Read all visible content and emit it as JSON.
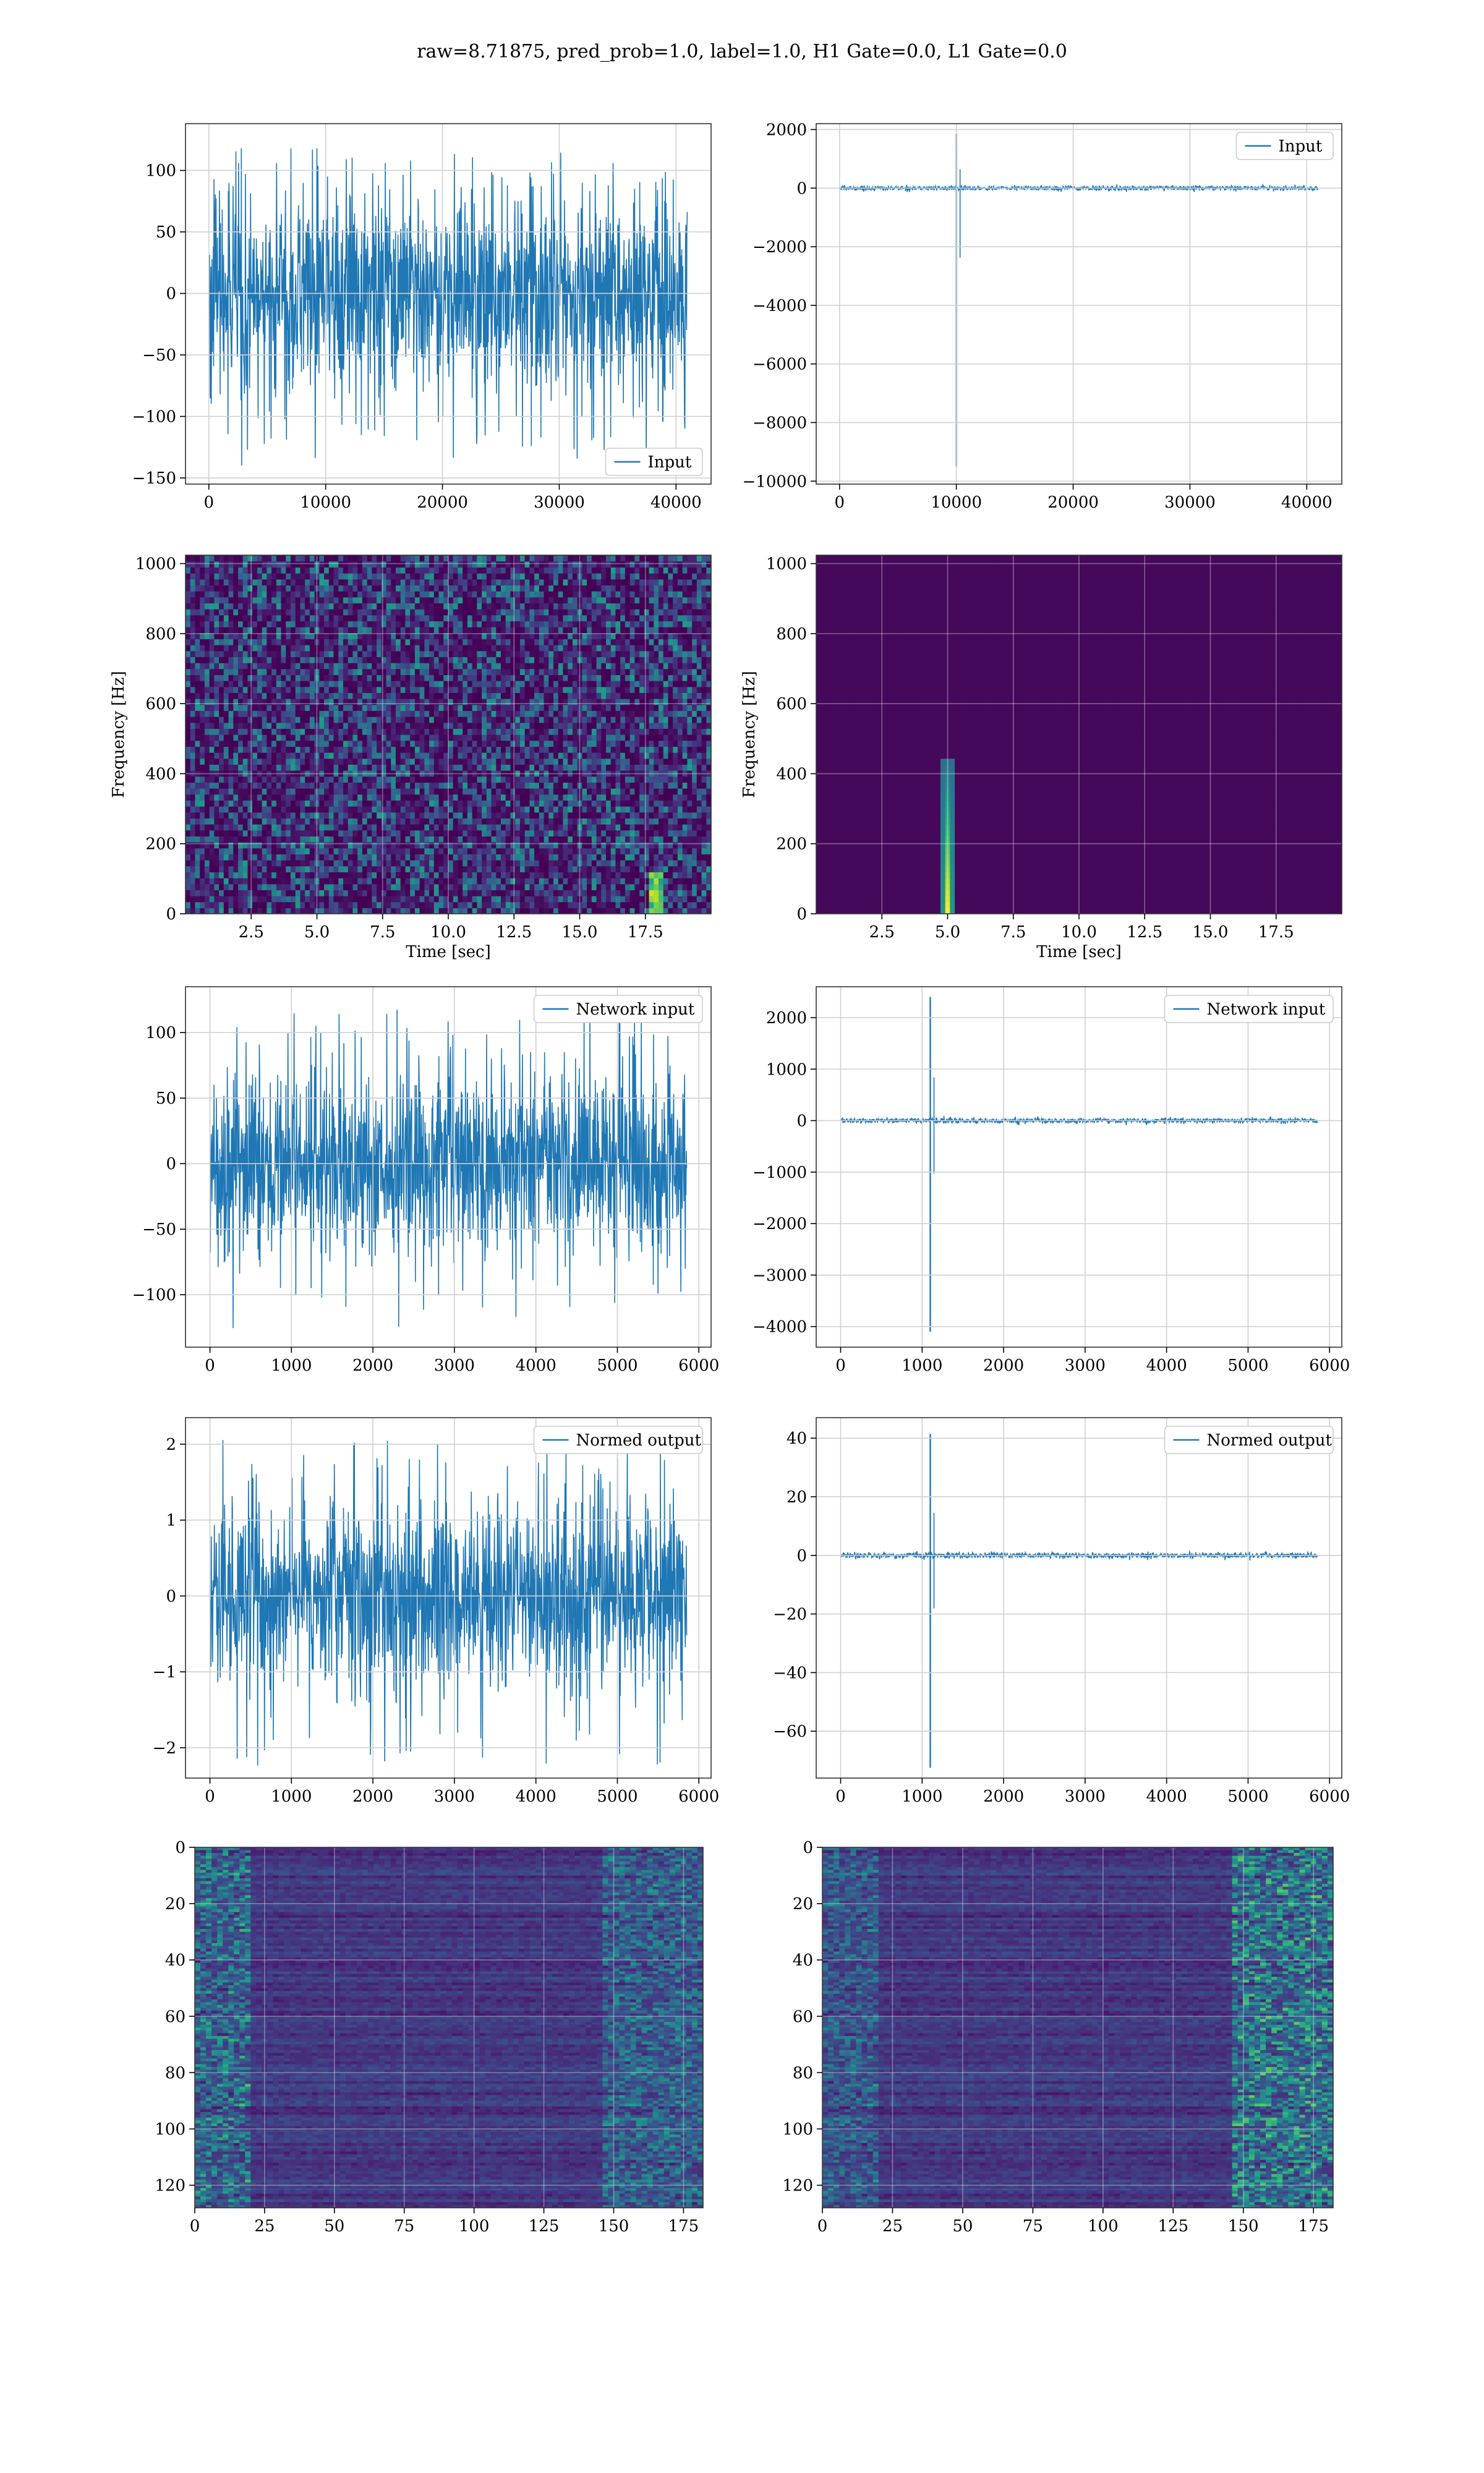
{
  "figure": {
    "title": "raw=8.71875, pred_prob=1.0, label=1.0, H1 Gate=0.0, L1 Gate=0.0"
  },
  "colors": {
    "line": "#1f77b4",
    "grid": "#d0d0d0",
    "viridis": [
      "#440154",
      "#482878",
      "#3e4989",
      "#31688e",
      "#26828e",
      "#1f9e89",
      "#35b779",
      "#6ece58",
      "#b5de2b",
      "#fde725"
    ]
  },
  "chart_data": [
    {
      "id": "input-h1",
      "type": "line",
      "title": "",
      "xlabel": "",
      "ylabel": "",
      "xlim": [
        -2000,
        43000
      ],
      "ylim": [
        -155,
        138
      ],
      "xticks": [
        0,
        10000,
        20000,
        30000,
        40000
      ],
      "yticks": [
        -150,
        -100,
        -50,
        0,
        50,
        100
      ],
      "legend": "Input",
      "legend_position": "bottom-right",
      "series": [
        {
          "name": "Input",
          "length": 40960,
          "range": [
            -140,
            118
          ],
          "typical_amplitude": 40
        }
      ]
    },
    {
      "id": "input-l1",
      "type": "line",
      "title": "",
      "xlabel": "",
      "ylabel": "",
      "xlim": [
        -2000,
        43000
      ],
      "ylim": [
        -10100,
        2200
      ],
      "xticks": [
        0,
        10000,
        20000,
        30000,
        40000
      ],
      "yticks": [
        -10000,
        -8000,
        -6000,
        -4000,
        -2000,
        0,
        2000
      ],
      "legend": "Input",
      "legend_position": "top-right",
      "series": [
        {
          "name": "Input",
          "length": 40960,
          "spike_x": 10000,
          "spike_max": 1850,
          "spike_min": -9500,
          "typical_amplitude": 40
        }
      ]
    },
    {
      "id": "spectrogram-h1",
      "type": "heatmap",
      "title": "",
      "xlabel": "Time [sec]",
      "ylabel": "Frequency [Hz]",
      "xlim": [
        0,
        20
      ],
      "ylim": [
        0,
        1024
      ],
      "xticks": [
        2.5,
        5.0,
        7.5,
        10.0,
        12.5,
        15.0,
        17.5
      ],
      "xtick_labels": [
        "2.5",
        "5.0",
        "7.5",
        "10.0",
        "12.5",
        "15.0",
        "17.5"
      ],
      "yticks": [
        0,
        200,
        400,
        600,
        800,
        1000
      ],
      "colormap": "viridis",
      "content": "broadband noise, faint blip near 18 s / 60 Hz"
    },
    {
      "id": "spectrogram-l1",
      "type": "heatmap",
      "title": "",
      "xlabel": "Time [sec]",
      "ylabel": "Frequency [Hz]",
      "xlim": [
        0,
        20
      ],
      "ylim": [
        0,
        1024
      ],
      "xticks": [
        2.5,
        5.0,
        7.5,
        10.0,
        12.5,
        15.0,
        17.5
      ],
      "xtick_labels": [
        "2.5",
        "5.0",
        "7.5",
        "10.0",
        "12.5",
        "15.0",
        "17.5"
      ],
      "yticks": [
        0,
        200,
        400,
        600,
        800,
        1000
      ],
      "colormap": "viridis",
      "content": "dark background, bright transient at 5.0 s up to ~450 Hz"
    },
    {
      "id": "network-input-h1",
      "type": "line",
      "title": "",
      "xlabel": "",
      "ylabel": "",
      "xlim": [
        -300,
        6150
      ],
      "ylim": [
        -140,
        135
      ],
      "xticks": [
        0,
        1000,
        2000,
        3000,
        4000,
        5000,
        6000
      ],
      "yticks": [
        -100,
        -50,
        0,
        50,
        100
      ],
      "legend": "Network input",
      "legend_position": "top-right",
      "series": [
        {
          "name": "Network input",
          "length": 5850,
          "range": [
            -128,
            122
          ],
          "typical_amplitude": 35
        }
      ]
    },
    {
      "id": "network-input-l1",
      "type": "line",
      "title": "",
      "xlabel": "",
      "ylabel": "",
      "xlim": [
        -300,
        6150
      ],
      "ylim": [
        -4400,
        2600
      ],
      "xticks": [
        0,
        1000,
        2000,
        3000,
        4000,
        5000,
        6000
      ],
      "yticks": [
        -4000,
        -3000,
        -2000,
        -1000,
        0,
        1000,
        2000
      ],
      "legend": "Network input",
      "legend_position": "top-right",
      "series": [
        {
          "name": "Network input",
          "length": 5850,
          "spike_x": 1100,
          "spike_max": 2400,
          "spike_min": -4100,
          "typical_amplitude": 25
        }
      ]
    },
    {
      "id": "normed-output-h1",
      "type": "line",
      "title": "",
      "xlabel": "",
      "ylabel": "",
      "xlim": [
        -300,
        6150
      ],
      "ylim": [
        -2.4,
        2.35
      ],
      "xticks": [
        0,
        1000,
        2000,
        3000,
        4000,
        5000,
        6000
      ],
      "yticks": [
        -2,
        -1,
        0,
        1,
        2
      ],
      "legend": "Normed output",
      "legend_position": "top-right",
      "series": [
        {
          "name": "Normed output",
          "length": 5850,
          "range": [
            -2.25,
            2.1
          ],
          "typical_amplitude": 0.6
        }
      ]
    },
    {
      "id": "normed-output-l1",
      "type": "line",
      "title": "",
      "xlabel": "",
      "ylabel": "",
      "xlim": [
        -300,
        6150
      ],
      "ylim": [
        -76,
        47
      ],
      "xticks": [
        0,
        1000,
        2000,
        3000,
        4000,
        5000,
        6000
      ],
      "yticks": [
        -60,
        -40,
        -20,
        0,
        20,
        40
      ],
      "legend": "Normed output",
      "legend_position": "top-right",
      "series": [
        {
          "name": "Normed output",
          "length": 5850,
          "spike_x": 1100,
          "spike_max": 41.5,
          "spike_min": -72.5,
          "typical_amplitude": 0.5
        }
      ]
    },
    {
      "id": "features-h1",
      "type": "heatmap",
      "title": "",
      "xlabel": "",
      "ylabel": "",
      "xlim": [
        0,
        182
      ],
      "ylim": [
        128,
        0
      ],
      "xticks": [
        0,
        25,
        50,
        75,
        100,
        125,
        150,
        175
      ],
      "yticks": [
        0,
        20,
        40,
        60,
        80,
        100,
        120
      ],
      "colormap": "viridis",
      "content": "128 channels x 182 steps, bright activity near both edges"
    },
    {
      "id": "features-l1",
      "type": "heatmap",
      "title": "",
      "xlabel": "",
      "ylabel": "",
      "xlim": [
        0,
        182
      ],
      "ylim": [
        128,
        0
      ],
      "xticks": [
        0,
        25,
        50,
        75,
        100,
        125,
        150,
        175
      ],
      "yticks": [
        0,
        20,
        40,
        60,
        80,
        100,
        120
      ],
      "colormap": "viridis",
      "content": "128 channels x 182 steps, bright activity at 145-175 on the right"
    }
  ]
}
